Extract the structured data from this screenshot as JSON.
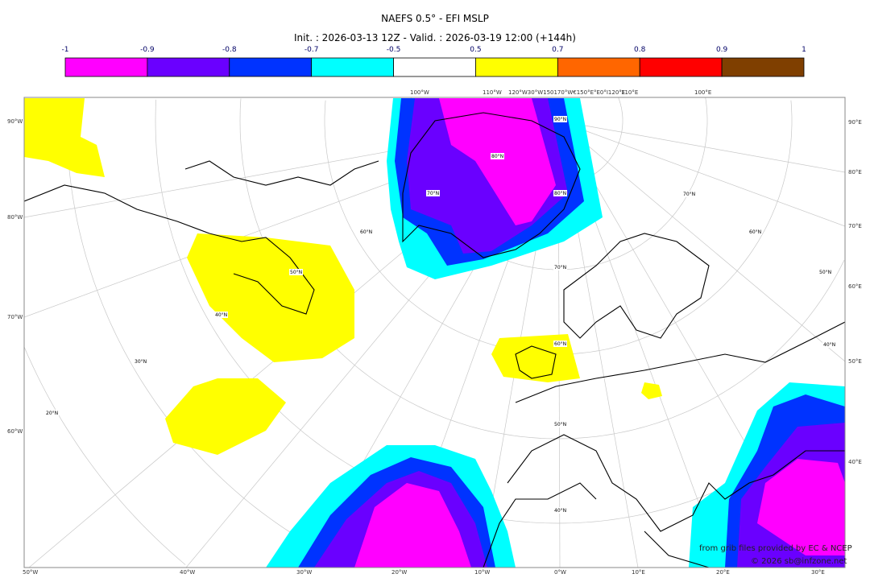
{
  "title": "NAEFS 0.5° - EFI MSLP",
  "subtitle": "Init. : 2026-03-13 12Z - Valid. : 2026-03-19 12:00 (+144h)",
  "colorbar": {
    "ticks": [
      "-1",
      "-0.9",
      "-0.8",
      "-0.7",
      "-0.5",
      "0.5",
      "0.7",
      "0.8",
      "0.9",
      "1"
    ],
    "colors": [
      "#ff00ff",
      "#6a00ff",
      "#0033ff",
      "#00ffff",
      "#ffffff",
      "#ffff00",
      "#ff6600",
      "#ff0000",
      "#7f3f00"
    ]
  },
  "map": {
    "left_labels": [
      "90°W",
      "80°W",
      "70°W",
      "60°W"
    ],
    "right_labels": [
      "90°E",
      "80°E",
      "70°E",
      "60°E",
      "50°E",
      "40°E"
    ],
    "top_labels": [
      "100°W",
      "110°W",
      "120°W30°W150170°W€150°E°E0°I120°E",
      "110°E",
      "100°E"
    ],
    "bottom_labels": [
      "50°W",
      "40°W",
      "30°W",
      "20°W",
      "10°W",
      "0°W",
      "10°E",
      "20°E",
      "30°E"
    ],
    "lat_labels": [
      "90°N",
      "80°N",
      "70°N",
      "80°N",
      "70°N",
      "60°N",
      "50°N",
      "40°N",
      "30°N",
      "20°N",
      "60°N",
      "50°N",
      "40°N",
      "70°N",
      "60°N",
      "50°N",
      "40°N"
    ]
  },
  "credits": {
    "source": "from grib files provided by EC & NCEP",
    "copyright": "© 2026 sb@infzone.net"
  }
}
